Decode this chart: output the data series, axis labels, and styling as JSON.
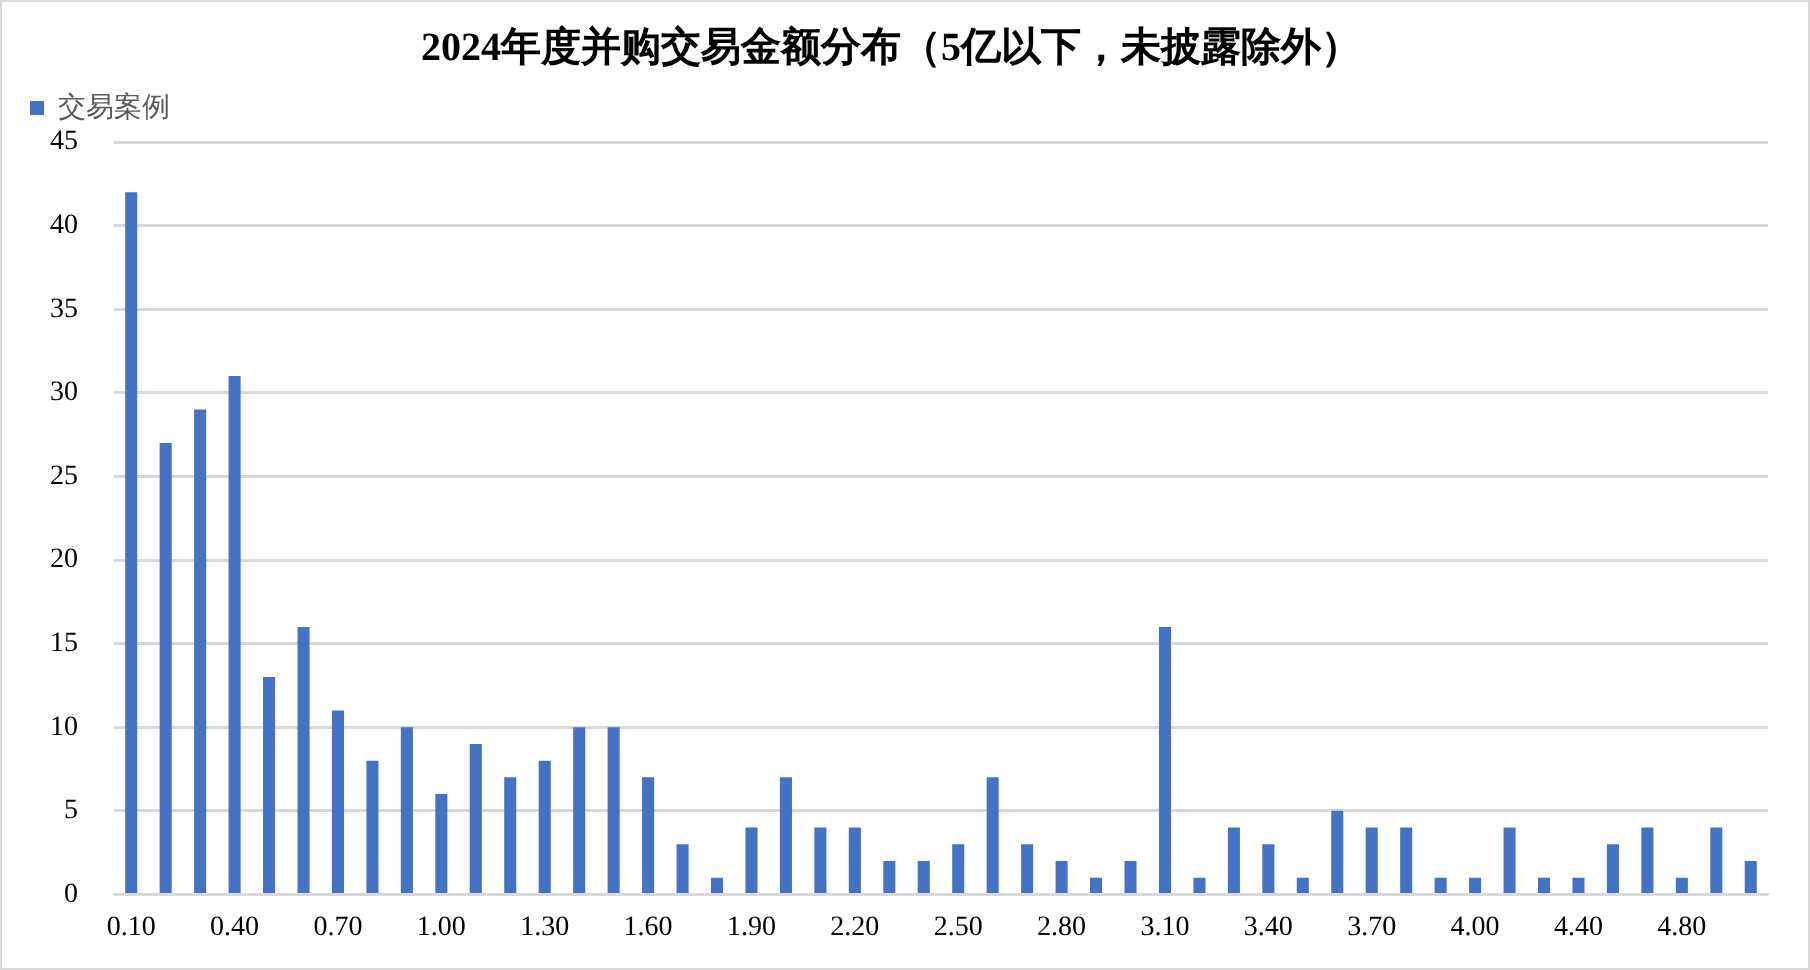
{
  "chart_data": {
    "type": "bar",
    "title": "2024年度并购交易金额分布（5亿以下，未披露除外）",
    "categories": [
      "0.10",
      null,
      null,
      "0.40",
      null,
      null,
      "0.70",
      null,
      null,
      "1.00",
      null,
      null,
      "1.30",
      null,
      null,
      "1.60",
      null,
      null,
      "1.90",
      null,
      null,
      "2.20",
      null,
      null,
      "2.50",
      null,
      null,
      "2.80",
      null,
      null,
      "3.10",
      null,
      null,
      "3.40",
      null,
      null,
      "3.70",
      null,
      null,
      "4.00",
      null,
      null,
      "4.40",
      null,
      null,
      "4.80",
      null,
      null
    ],
    "series": [
      {
        "name": "交易案例",
        "color": "#4472c4",
        "values": [
          42,
          27,
          29,
          31,
          13,
          16,
          11,
          8,
          10,
          6,
          9,
          7,
          8,
          10,
          10,
          7,
          3,
          1,
          4,
          7,
          4,
          4,
          2,
          2,
          3,
          7,
          3,
          2,
          1,
          2,
          16,
          1,
          4,
          3,
          1,
          5,
          4,
          4,
          1,
          1,
          4,
          1,
          1,
          3,
          4,
          1,
          4,
          2
        ]
      }
    ],
    "ylim": [
      0,
      45
    ],
    "yticks": [
      0,
      5,
      10,
      15,
      20,
      25,
      30,
      35,
      40,
      45
    ],
    "grid": "y",
    "legend": "top left"
  }
}
